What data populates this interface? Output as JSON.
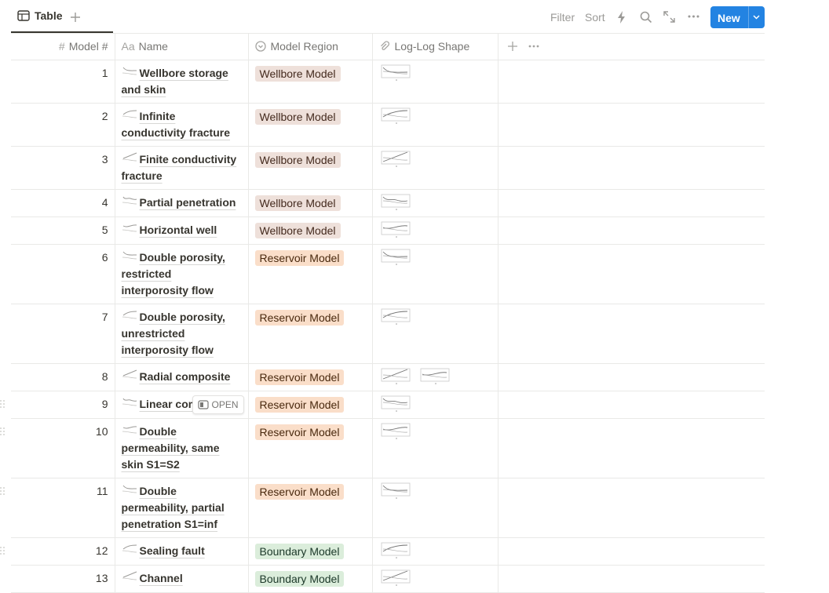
{
  "toolbar": {
    "view_tab": "Table",
    "filter": "Filter",
    "sort": "Sort",
    "new_button": "New"
  },
  "table": {
    "columns": [
      {
        "icon": "#",
        "label": "Model #"
      },
      {
        "icon": "Aa",
        "label": "Name"
      },
      {
        "label": "Model Region"
      },
      {
        "label": "Log-Log Shape"
      }
    ],
    "rows": [
      [
        1,
        "Wellbore storage and skin",
        "Wellbore Model"
      ],
      [
        2,
        "Infinite conductivity fracture",
        "Wellbore Model"
      ],
      [
        3,
        "Finite conductivity fracture",
        "Wellbore Model"
      ],
      [
        4,
        "Partial penetration",
        "Wellbore Model"
      ],
      [
        5,
        "Horizontal well",
        "Wellbore Model"
      ],
      [
        6,
        "Double porosity, restricted interporosity flow",
        "Reservoir Model"
      ],
      [
        7,
        "Double porosity, unrestricted interporosity flow",
        "Reservoir Model"
      ],
      [
        8,
        "Radial composite",
        "Reservoir Model"
      ],
      [
        9,
        "Linear composite",
        "Reservoir Model"
      ],
      [
        10,
        "Double permeability, same skin S1=S2",
        "Reservoir Model"
      ],
      [
        11,
        "Double permeability, partial penetration S1=inf",
        "Reservoir Model"
      ],
      [
        12,
        "Sealing fault",
        "Boundary Model"
      ],
      [
        13,
        "Channel",
        "Boundary Model"
      ]
    ],
    "row_action": "OPEN"
  }
}
